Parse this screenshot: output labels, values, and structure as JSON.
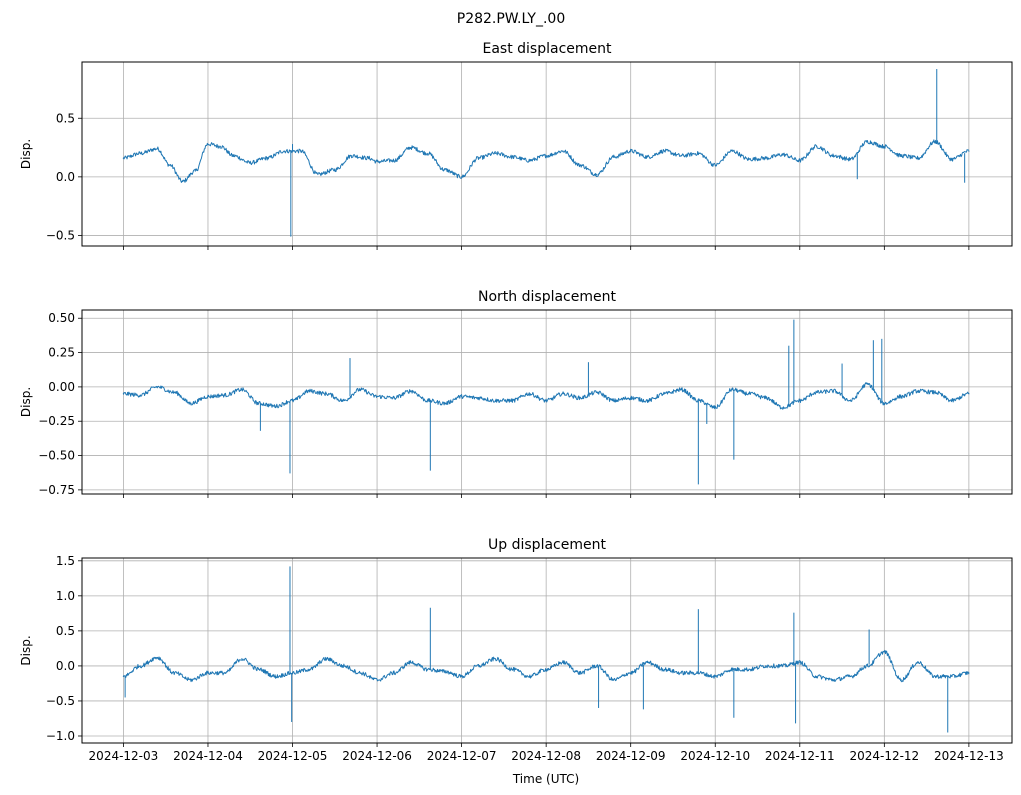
{
  "figure": {
    "suptitle": "P282.PW.LY_.00",
    "xlabel": "Time (UTC)"
  },
  "colors": {
    "line": "#1f77b4",
    "grid": "#b0b0b0",
    "axis": "#000000"
  },
  "chart_data": [
    {
      "type": "line",
      "title": "East displacement",
      "xlabel": "",
      "ylabel": "Disp.",
      "ylim": [
        -0.59,
        0.98
      ],
      "yticks": [
        -0.5,
        0.0,
        0.5
      ],
      "ytick_labels": [
        "−0.5",
        "0.0",
        "0.5"
      ],
      "grid": true,
      "x_unit": "days since 2024-12-03 00:00 UTC",
      "xlim": [
        -0.49,
        10.51
      ],
      "x": [
        0.0,
        0.2,
        0.4,
        0.55,
        0.7,
        0.85,
        1.0,
        1.15,
        1.3,
        1.5,
        1.7,
        1.9,
        2.1,
        2.3,
        2.5,
        2.7,
        2.9,
        3.0,
        3.2,
        3.4,
        3.6,
        3.8,
        4.0,
        4.2,
        4.4,
        4.6,
        4.8,
        5.0,
        5.2,
        5.4,
        5.6,
        5.8,
        6.0,
        6.2,
        6.4,
        6.6,
        6.8,
        7.0,
        7.2,
        7.4,
        7.6,
        7.8,
        8.0,
        8.2,
        8.4,
        8.6,
        8.8,
        9.0,
        9.2,
        9.4,
        9.6,
        9.8,
        10.0
      ],
      "values": [
        0.16,
        0.2,
        0.24,
        0.1,
        -0.04,
        0.05,
        0.28,
        0.26,
        0.18,
        0.12,
        0.16,
        0.22,
        0.22,
        0.02,
        0.06,
        0.18,
        0.16,
        0.13,
        0.14,
        0.25,
        0.2,
        0.06,
        0.0,
        0.16,
        0.2,
        0.17,
        0.14,
        0.18,
        0.22,
        0.1,
        0.02,
        0.17,
        0.22,
        0.17,
        0.22,
        0.18,
        0.2,
        0.1,
        0.22,
        0.15,
        0.16,
        0.19,
        0.14,
        0.26,
        0.18,
        0.15,
        0.3,
        0.26,
        0.18,
        0.16,
        0.3,
        0.15,
        0.22
      ],
      "spikes": [
        {
          "x": 1.98,
          "y": -0.51
        },
        {
          "x": 9.62,
          "y": 0.92
        },
        {
          "x": 2.0,
          "y": 0.28
        },
        {
          "x": 8.68,
          "y": -0.02
        },
        {
          "x": 9.95,
          "y": -0.05
        }
      ]
    },
    {
      "type": "line",
      "title": "North displacement",
      "xlabel": "",
      "ylabel": "Disp.",
      "ylim": [
        -0.78,
        0.56
      ],
      "yticks": [
        -0.75,
        -0.5,
        -0.25,
        0.0,
        0.25,
        0.5
      ],
      "ytick_labels": [
        "−0.75",
        "−0.50",
        "−0.25",
        "0.00",
        "0.25",
        "0.50"
      ],
      "grid": true,
      "x_unit": "days since 2024-12-03 00:00 UTC",
      "xlim": [
        -0.49,
        10.51
      ],
      "x": [
        0.0,
        0.2,
        0.4,
        0.6,
        0.8,
        1.0,
        1.2,
        1.4,
        1.6,
        1.8,
        2.0,
        2.2,
        2.4,
        2.6,
        2.8,
        3.0,
        3.2,
        3.4,
        3.6,
        3.8,
        4.0,
        4.2,
        4.4,
        4.6,
        4.8,
        5.0,
        5.2,
        5.4,
        5.6,
        5.8,
        6.0,
        6.2,
        6.4,
        6.6,
        6.8,
        7.0,
        7.2,
        7.4,
        7.6,
        7.8,
        8.0,
        8.2,
        8.4,
        8.6,
        8.8,
        9.0,
        9.2,
        9.4,
        9.6,
        9.8,
        10.0
      ],
      "values": [
        -0.05,
        -0.06,
        0.0,
        -0.04,
        -0.12,
        -0.07,
        -0.06,
        -0.02,
        -0.12,
        -0.14,
        -0.1,
        -0.03,
        -0.05,
        -0.1,
        -0.02,
        -0.07,
        -0.08,
        -0.03,
        -0.1,
        -0.12,
        -0.07,
        -0.08,
        -0.1,
        -0.1,
        -0.05,
        -0.1,
        -0.05,
        -0.08,
        -0.04,
        -0.1,
        -0.08,
        -0.1,
        -0.05,
        -0.02,
        -0.1,
        -0.15,
        -0.02,
        -0.05,
        -0.08,
        -0.15,
        -0.1,
        -0.04,
        -0.03,
        -0.1,
        0.02,
        -0.12,
        -0.07,
        -0.03,
        -0.04,
        -0.1,
        -0.05
      ],
      "spikes": [
        {
          "x": 1.97,
          "y": -0.63
        },
        {
          "x": 3.63,
          "y": -0.61
        },
        {
          "x": 6.8,
          "y": -0.71
        },
        {
          "x": 7.22,
          "y": -0.53
        },
        {
          "x": 7.87,
          "y": 0.3
        },
        {
          "x": 7.93,
          "y": 0.49
        },
        {
          "x": 8.87,
          "y": 0.34
        },
        {
          "x": 8.97,
          "y": 0.35
        },
        {
          "x": 8.5,
          "y": 0.17
        },
        {
          "x": 5.5,
          "y": 0.18
        },
        {
          "x": 2.68,
          "y": 0.21
        },
        {
          "x": 1.62,
          "y": -0.32
        },
        {
          "x": 6.9,
          "y": -0.27
        }
      ]
    },
    {
      "type": "line",
      "title": "Up displacement",
      "xlabel": "Time (UTC)",
      "ylabel": "Disp.",
      "ylim": [
        -1.1,
        1.54
      ],
      "yticks": [
        -1.0,
        -0.5,
        0.0,
        0.5,
        1.0,
        1.5
      ],
      "ytick_labels": [
        "−1.0",
        "−0.5",
        "0.0",
        "0.5",
        "1.0",
        "1.5"
      ],
      "grid": true,
      "x_unit": "days since 2024-12-03 00:00 UTC",
      "xlim": [
        -0.49,
        10.51
      ],
      "x": [
        0.0,
        0.2,
        0.4,
        0.6,
        0.8,
        1.0,
        1.2,
        1.4,
        1.6,
        1.8,
        2.0,
        2.2,
        2.4,
        2.6,
        2.8,
        3.0,
        3.2,
        3.4,
        3.6,
        3.8,
        4.0,
        4.2,
        4.4,
        4.6,
        4.8,
        5.0,
        5.2,
        5.4,
        5.6,
        5.8,
        6.0,
        6.2,
        6.4,
        6.6,
        6.8,
        7.0,
        7.2,
        7.4,
        7.6,
        7.8,
        8.0,
        8.2,
        8.4,
        8.6,
        8.8,
        9.0,
        9.2,
        9.4,
        9.6,
        9.8,
        10.0
      ],
      "values": [
        -0.15,
        0.0,
        0.12,
        -0.1,
        -0.2,
        -0.1,
        -0.1,
        0.1,
        -0.05,
        -0.15,
        -0.1,
        -0.05,
        0.1,
        0.0,
        -0.1,
        -0.2,
        -0.1,
        0.05,
        -0.05,
        -0.08,
        -0.15,
        0.0,
        0.1,
        -0.05,
        -0.15,
        -0.05,
        0.05,
        -0.1,
        0.0,
        -0.2,
        -0.1,
        0.05,
        -0.05,
        -0.1,
        -0.1,
        -0.15,
        -0.05,
        -0.05,
        0.0,
        0.0,
        0.05,
        -0.15,
        -0.2,
        -0.15,
        0.0,
        0.2,
        -0.2,
        0.05,
        -0.15,
        -0.15,
        -0.1
      ],
      "spikes": [
        {
          "x": 1.97,
          "y": 1.42
        },
        {
          "x": 1.99,
          "y": -0.8
        },
        {
          "x": 3.63,
          "y": 0.83
        },
        {
          "x": 6.8,
          "y": 0.81
        },
        {
          "x": 7.93,
          "y": 0.76
        },
        {
          "x": 7.22,
          "y": -0.74
        },
        {
          "x": 7.95,
          "y": -0.82
        },
        {
          "x": 9.75,
          "y": -0.95
        },
        {
          "x": 8.82,
          "y": 0.52
        },
        {
          "x": 0.02,
          "y": -0.45
        },
        {
          "x": 5.62,
          "y": -0.6
        },
        {
          "x": 6.15,
          "y": -0.62
        }
      ]
    }
  ],
  "xaxis": {
    "ticks": [
      0,
      1,
      2,
      3,
      4,
      5,
      6,
      7,
      8,
      9,
      10
    ],
    "tick_labels": [
      "2024-12-03",
      "2024-12-04",
      "2024-12-05",
      "2024-12-06",
      "2024-12-07",
      "2024-12-08",
      "2024-12-09",
      "2024-12-10",
      "2024-12-11",
      "2024-12-12",
      "2024-12-13"
    ]
  }
}
